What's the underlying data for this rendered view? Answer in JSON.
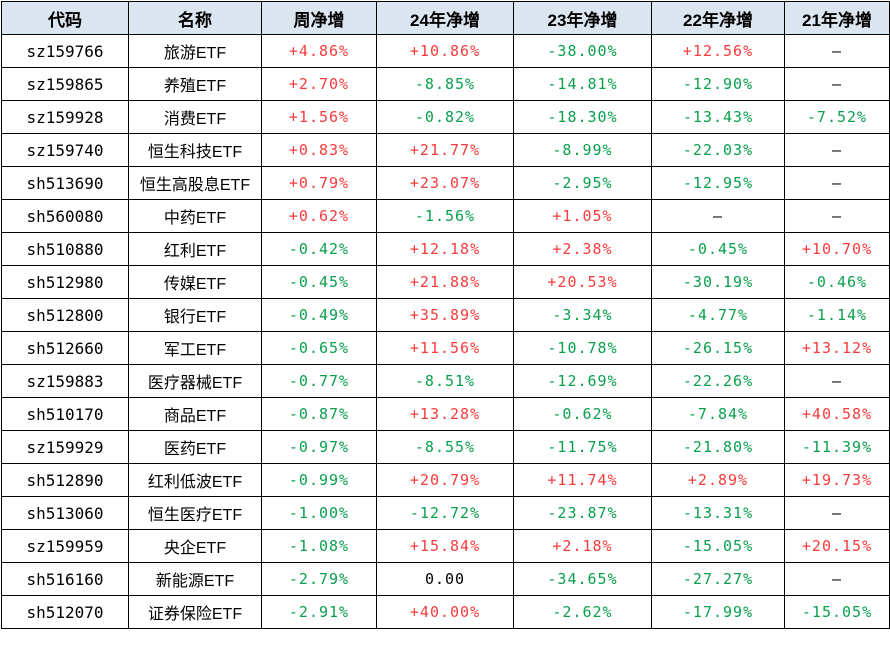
{
  "chart_data": {
    "type": "table",
    "columns": [
      "代码",
      "名称",
      "周净增",
      "24年净增",
      "23年净增",
      "22年净增",
      "21年净增"
    ],
    "rows": [
      [
        "sz159766",
        "旅游ETF",
        "+4.86%",
        "+10.86%",
        "-38.00%",
        "+12.56%",
        "—"
      ],
      [
        "sz159865",
        "养殖ETF",
        "+2.70%",
        "-8.85%",
        "-14.81%",
        "-12.90%",
        "—"
      ],
      [
        "sz159928",
        "消费ETF",
        "+1.56%",
        "-0.82%",
        "-18.30%",
        "-13.43%",
        "-7.52%"
      ],
      [
        "sz159740",
        "恒生科技ETF",
        "+0.83%",
        "+21.77%",
        "-8.99%",
        "-22.03%",
        "—"
      ],
      [
        "sh513690",
        "恒生高股息ETF",
        "+0.79%",
        "+23.07%",
        "-2.95%",
        "-12.95%",
        "—"
      ],
      [
        "sh560080",
        "中药ETF",
        "+0.62%",
        "-1.56%",
        "+1.05%",
        "—",
        "—"
      ],
      [
        "sh510880",
        "红利ETF",
        "-0.42%",
        "+12.18%",
        "+2.38%",
        "-0.45%",
        "+10.70%"
      ],
      [
        "sh512980",
        "传媒ETF",
        "-0.45%",
        "+21.88%",
        "+20.53%",
        "-30.19%",
        "-0.46%"
      ],
      [
        "sh512800",
        "银行ETF",
        "-0.49%",
        "+35.89%",
        "-3.34%",
        "-4.77%",
        "-1.14%"
      ],
      [
        "sh512660",
        "军工ETF",
        "-0.65%",
        "+11.56%",
        "-10.78%",
        "-26.15%",
        "+13.12%"
      ],
      [
        "sz159883",
        "医疗器械ETF",
        "-0.77%",
        "-8.51%",
        "-12.69%",
        "-22.26%",
        "—"
      ],
      [
        "sh510170",
        "商品ETF",
        "-0.87%",
        "+13.28%",
        "-0.62%",
        "-7.84%",
        "+40.58%"
      ],
      [
        "sz159929",
        "医药ETF",
        "-0.97%",
        "-8.55%",
        "-11.75%",
        "-21.80%",
        "-11.39%"
      ],
      [
        "sh512890",
        "红利低波ETF",
        "-0.99%",
        "+20.79%",
        "+11.74%",
        "+2.89%",
        "+19.73%"
      ],
      [
        "sh513060",
        "恒生医疗ETF",
        "-1.00%",
        "-12.72%",
        "-23.87%",
        "-13.31%",
        "—"
      ],
      [
        "sz159959",
        "央企ETF",
        "-1.08%",
        "+15.84%",
        "+2.18%",
        "-15.05%",
        "+20.15%"
      ],
      [
        "sh516160",
        "新能源ETF",
        "-2.79%",
        "0.00",
        "-34.65%",
        "-27.27%",
        "—"
      ],
      [
        "sh512070",
        "证券保险ETF",
        "-2.91%",
        "+40.00%",
        "-2.62%",
        "-17.99%",
        "-15.05%"
      ]
    ],
    "layout": {
      "grid": true,
      "header_style": "bold, light-blue background",
      "value_convention": "positive values red, negative values green, neutral/missing black em-dash"
    }
  },
  "colors": {
    "positive": "#fa3b3b",
    "negative": "#0aa04e",
    "neutral": "#000000",
    "header_bg": "#dce6f1",
    "border": "#000000"
  }
}
